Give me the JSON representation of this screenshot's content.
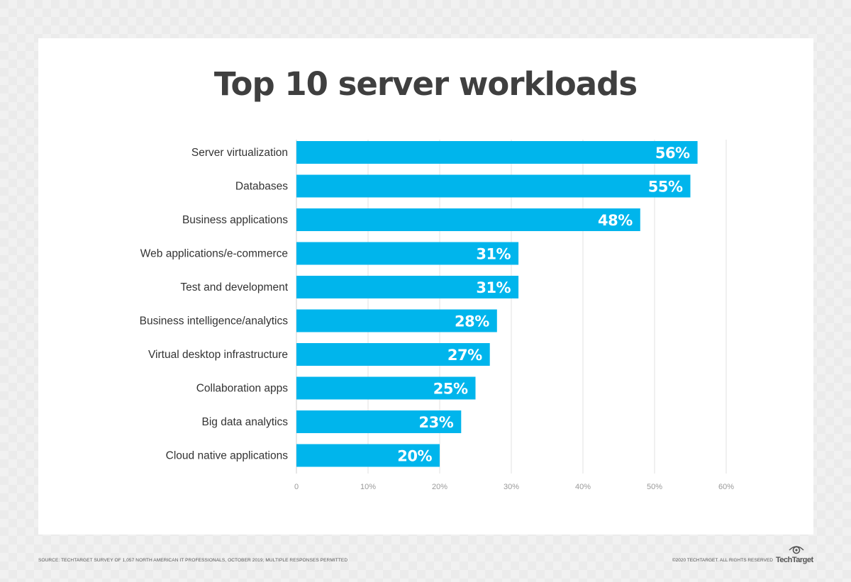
{
  "chart_data": {
    "type": "bar",
    "orientation": "horizontal",
    "title": "Top 10 server workloads",
    "categories": [
      "Server virtualization",
      "Databases",
      "Business applications",
      "Web applications/e-commerce",
      "Test and development",
      "Business intelligence/analytics",
      "Virtual desktop infrastructure",
      "Collaboration apps",
      "Big data analytics",
      "Cloud native applications"
    ],
    "values": [
      56,
      55,
      48,
      31,
      31,
      28,
      27,
      25,
      23,
      20
    ],
    "value_labels": [
      "56%",
      "55%",
      "48%",
      "31%",
      "31%",
      "28%",
      "27%",
      "25%",
      "23%",
      "20%"
    ],
    "x_ticks": [
      0,
      10,
      20,
      30,
      40,
      50,
      60
    ],
    "x_tick_labels": [
      "0",
      "10%",
      "20%",
      "30%",
      "40%",
      "50%",
      "60%"
    ],
    "xlim": [
      0,
      60
    ],
    "xlabel": "",
    "ylabel": "",
    "grid": true,
    "bar_color": "#00b5ec",
    "grid_color": "#e2e2e2"
  },
  "footer": {
    "source": "SOURCE: TECHTARGET SURVEY OF 1,057 NORTH AMERICAN IT PROFESSIONALS, OCTOBER 2019; MULTIPLE RESPONSES PERMITTED",
    "copyright": "©2020 TECHTARGET. ALL RIGHTS RESERVED",
    "logo": "TechTarget"
  }
}
